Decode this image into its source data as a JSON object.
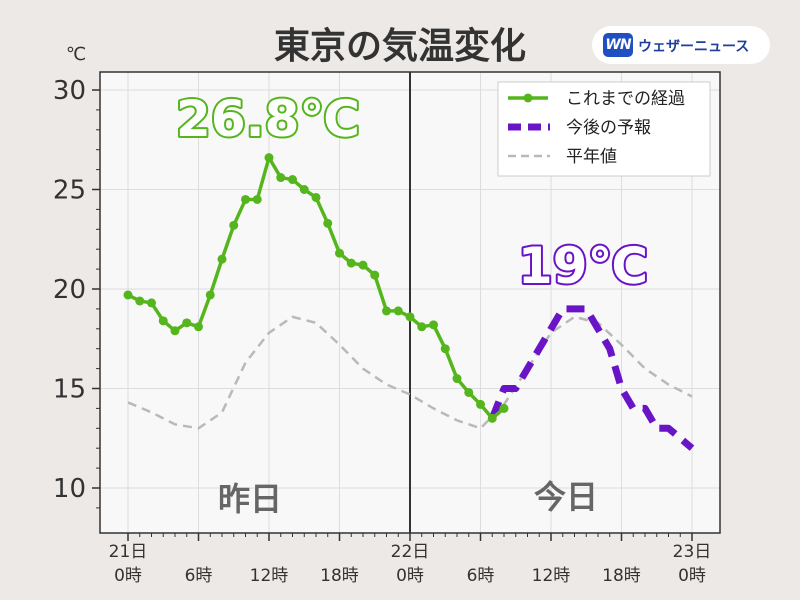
{
  "chart_data": {
    "type": "line",
    "title": "東京の気温変化",
    "ylabel": "℃",
    "ylim": [
      8,
      31
    ],
    "xlim": [
      0,
      48
    ],
    "yticks": [
      10,
      15,
      20,
      25,
      30
    ],
    "grid": true,
    "legend_position": "top-right",
    "x_tick_labels": [
      {
        "x": 0,
        "line1": "21日",
        "line2": "0時"
      },
      {
        "x": 6,
        "line1": "",
        "line2": "6時"
      },
      {
        "x": 12,
        "line1": "",
        "line2": "12時"
      },
      {
        "x": 18,
        "line1": "",
        "line2": "18時"
      },
      {
        "x": 24,
        "line1": "22日",
        "line2": "0時"
      },
      {
        "x": 30,
        "line1": "",
        "line2": "6時"
      },
      {
        "x": 36,
        "line1": "",
        "line2": "12時"
      },
      {
        "x": 42,
        "line1": "",
        "line2": "18時"
      },
      {
        "x": 48,
        "line1": "23日",
        "line2": "0時"
      }
    ],
    "divider_x": 24,
    "series": [
      {
        "name": "これまでの経過",
        "style": "solid-markers",
        "color": "#55b51c",
        "x": [
          0,
          1,
          2,
          3,
          4,
          5,
          6,
          7,
          8,
          9,
          10,
          11,
          12,
          13,
          14,
          15,
          16,
          17,
          18,
          19,
          20,
          21,
          22,
          23,
          24,
          25,
          26,
          27,
          28,
          29,
          30,
          31,
          32
        ],
        "values": [
          19.7,
          19.4,
          19.3,
          18.4,
          17.9,
          18.3,
          18.1,
          19.7,
          21.5,
          23.2,
          24.5,
          24.5,
          26.6,
          25.6,
          25.5,
          25.0,
          24.6,
          23.3,
          21.8,
          21.3,
          21.2,
          20.7,
          18.9,
          18.9,
          18.6,
          18.1,
          18.2,
          17.0,
          15.5,
          14.8,
          14.2,
          13.5,
          14.0
        ]
      },
      {
        "name": "今後の予報",
        "style": "dashed-thick",
        "color": "#6a14c8",
        "x": [
          31,
          32,
          33,
          34,
          35,
          36,
          37,
          38,
          39,
          40,
          41,
          42,
          43,
          44,
          45,
          46,
          47,
          48
        ],
        "values": [
          13.5,
          15,
          15,
          16,
          17,
          18,
          19,
          19,
          19,
          18,
          17,
          15,
          14,
          14,
          13,
          13,
          12.5,
          12
        ]
      },
      {
        "name": "平年値",
        "style": "dashed-thin",
        "color": "#b9b9b9",
        "x": [
          0,
          2,
          4,
          6,
          8,
          10,
          12,
          14,
          16,
          18,
          20,
          22,
          24,
          26,
          28,
          30,
          32,
          34,
          36,
          38,
          40,
          42,
          44,
          46,
          48
        ],
        "values": [
          14.3,
          13.8,
          13.2,
          13.0,
          13.8,
          16.3,
          17.8,
          18.6,
          18.3,
          17.2,
          16.0,
          15.2,
          14.7,
          14.0,
          13.4,
          13.0,
          14.2,
          16.0,
          17.8,
          18.6,
          18.3,
          17.2,
          16.0,
          15.2,
          14.6
        ]
      }
    ],
    "annotations": {
      "max_label": "26.8℃",
      "forecast_label": "19℃",
      "yesterday_label": "昨日",
      "today_label": "今日"
    },
    "colors": {
      "observed": "#55b51c",
      "forecast": "#6a14c8",
      "normal": "#b9b9b9",
      "divider": "#333333",
      "plot_background": "#f9f8f8",
      "grid": "#dddddd"
    }
  },
  "logo": {
    "mark": "WN",
    "text": "ウェザーニュース",
    "brand_color": "#1f4fc2"
  }
}
